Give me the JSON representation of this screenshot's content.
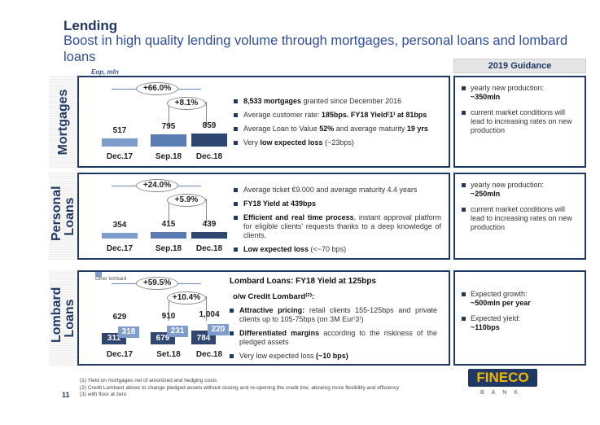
{
  "title": "Lending",
  "subtitle": "Boost in high quality lending volume through mortgages, personal loans and lombard loans",
  "unit_note": "Eop, mln",
  "guidance_header": "2019 Guidance",
  "colors": {
    "navy": "#1f3864",
    "bar_light": "#7f9ccc",
    "bar_mid": "#5b7bb3",
    "bar_dark": "#2e4670"
  },
  "sections": [
    {
      "label": "Mortgages",
      "categories": [
        "Dec.17",
        "Sep.18",
        "Dec.18"
      ],
      "values": [
        517,
        795,
        859
      ],
      "growth_total": "+66.0%",
      "growth_recent": "+8.1%",
      "bullets": [
        [
          "8,533 mortgages",
          " granted since December 2016"
        ],
        [
          "Average customer rate: ",
          "185bps. FY18 Yield(1) at 81bps"
        ],
        [
          "Average Loan to Value ",
          "52%",
          " and average maturity ",
          "19 yrs"
        ],
        [
          "Very ",
          "low expected loss",
          " (~23bps)"
        ]
      ],
      "guidance": [
        [
          "yearly new production:",
          "~350mln"
        ],
        [
          "current market conditions will lead to increasing rates on new production",
          ""
        ]
      ]
    },
    {
      "label": "Personal Loans",
      "categories": [
        "Dec.17",
        "Sep.18",
        "Dec.18"
      ],
      "values": [
        354,
        415,
        439
      ],
      "growth_total": "+24.0%",
      "growth_recent": "+5.9%",
      "bullets": [
        [
          "Average ticket €9.000 and average maturity 4.4 years",
          ""
        ],
        [
          "FY18 Yield at 439bps",
          ""
        ],
        [
          "Efficient and real time process",
          ", instant approval platform for eligible clients' requests thanks to a deep knowledge of clients."
        ],
        [
          "Low expected loss",
          " (<~70 bps)"
        ]
      ],
      "guidance": [
        [
          "yearly new production:",
          "~250mln"
        ],
        [
          "current market conditions will lead to increasing rates on new production",
          ""
        ]
      ]
    },
    {
      "label": "Lombard Loans",
      "legend": "Other lombard",
      "categories": [
        "Dec.17",
        "Set.18",
        "Dec.18"
      ],
      "totals": [
        "629",
        "910",
        "1,004"
      ],
      "credit_lombard": [
        311,
        679,
        784
      ],
      "other_lombard": [
        318,
        231,
        220
      ],
      "growth_total": "+59.5%",
      "growth_recent": "+10.4%",
      "heading": "Lombard Loans: FY18 Yield at 125bps",
      "subheading": "o/w Credit Lombard(2):",
      "bullets": [
        [
          "Attractive pricing:",
          " retail clients 155-125bps and private clients up to 105-75bps (on 3M Eur(3))"
        ],
        [
          "Differentiated margins",
          " according to the riskiness of the pledged assets"
        ],
        [
          "Very low expected loss",
          " (~10 bps)"
        ]
      ],
      "guidance": [
        [
          "Expected growth:",
          "~500mln per year"
        ],
        [
          "Expected yield:",
          "~110bps"
        ]
      ]
    }
  ],
  "footnotes": [
    "(1) Yield on mortgages net of amortized and hedging costs",
    "(2) Credit Lombard allows to change pledged assets without closing and re-opening the credit line, allowing more flexibility and efficiency",
    "(3) with floor at zero"
  ],
  "page_number": "11",
  "logo": {
    "name": "FINECO",
    "sub": "BANK"
  }
}
